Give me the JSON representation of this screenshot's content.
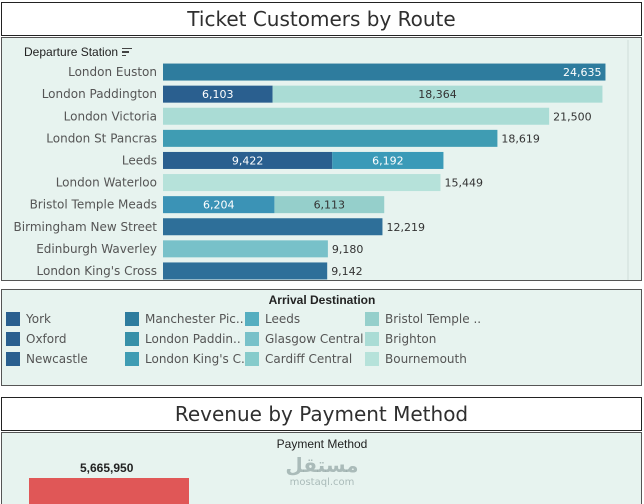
{
  "title1": "Ticket Customers by Route",
  "title2": "Revenue by Payment Method",
  "row_header": "Departure Station",
  "legend_title": "Arrival Destination",
  "legend": [
    {
      "label": "York",
      "color": "#2a5f8f"
    },
    {
      "label": "Oxford",
      "color": "#2a5f8f"
    },
    {
      "label": "Newcastle",
      "color": "#2a5f8f"
    },
    {
      "label": "Manchester Pic..",
      "color": "#2e7c9e"
    },
    {
      "label": "London Paddin..",
      "color": "#3790a8"
    },
    {
      "label": "London King's C..",
      "color": "#3f9cb3"
    },
    {
      "label": "Leeds",
      "color": "#55aec0"
    },
    {
      "label": "Glasgow Central",
      "color": "#78c1c9"
    },
    {
      "label": "Cardiff Central",
      "color": "#86cbcb"
    },
    {
      "label": "Bristol Temple ..",
      "color": "#95cfcb"
    },
    {
      "label": "Brighton",
      "color": "#aadcd5"
    },
    {
      "label": "Bournemouth",
      "color": "#b6e2da"
    }
  ],
  "chart_data": {
    "type": "bar",
    "orientation": "horizontal",
    "stacked": true,
    "title": "Ticket Customers by Route",
    "categories": [
      "London Euston",
      "London Paddington",
      "London Victoria",
      "London St Pancras",
      "Leeds",
      "London Waterloo",
      "Bristol Temple Meads",
      "Birmingham New Street",
      "Edinburgh Waverley",
      "London King's Cross"
    ],
    "segments": [
      [
        {
          "value": 24635,
          "label": "24,635",
          "color": "#2e7c9e",
          "inside": true
        }
      ],
      [
        {
          "value": 6103,
          "label": "6,103",
          "color": "#2a5f8f",
          "inside": true
        },
        {
          "value": 18364,
          "label": "18,364",
          "color": "#aadcd5",
          "inside": true
        }
      ],
      [
        {
          "value": 21500,
          "label": "21,500",
          "color": "#aadcd5",
          "inside": false
        }
      ],
      [
        {
          "value": 18619,
          "label": "18,619",
          "color": "#3f9cb3",
          "inside": false
        }
      ],
      [
        {
          "value": 9422,
          "label": "9,422",
          "color": "#2a5f8f",
          "inside": true
        },
        {
          "value": 6192,
          "label": "6,192",
          "color": "#3a9ab8",
          "inside": true
        }
      ],
      [
        {
          "value": 15449,
          "label": "15,449",
          "color": "#b6e2da",
          "inside": false
        }
      ],
      [
        {
          "value": 6204,
          "label": "6,204",
          "color": "#3b93b6",
          "inside": true
        },
        {
          "value": 6113,
          "label": "6,113",
          "color": "#95cfcb",
          "inside": true
        }
      ],
      [
        {
          "value": 12219,
          "label": "12,219",
          "color": "#2e6f99",
          "inside": false
        }
      ],
      [
        {
          "value": 9180,
          "label": "9,180",
          "color": "#78c1c9",
          "inside": false
        }
      ],
      [
        {
          "value": 9142,
          "label": "9,142",
          "color": "#2e6f99",
          "inside": false
        }
      ]
    ],
    "xlim": [
      0,
      25500
    ]
  },
  "revenue": {
    "axis_label": "Payment Method",
    "value_label": "5,665,950",
    "color": "#e05757"
  },
  "watermark": {
    "text": "مستقل",
    "sub": "mostaql.com"
  }
}
